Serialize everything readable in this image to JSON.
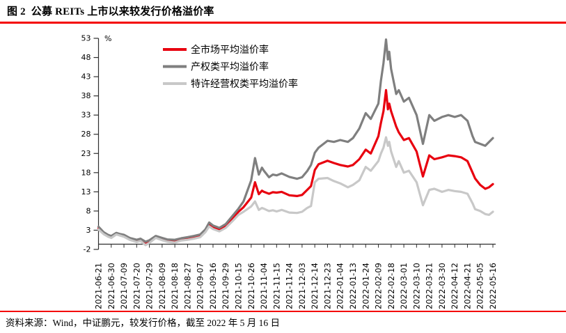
{
  "header": {
    "title": "图 2  公募 REITs 上市以来较发行价格溢价率"
  },
  "footer": {
    "source_note": "资料来源：Wind，中证鹏元，较发行价格，截至 2022 年 5 月 16 日"
  },
  "colors": {
    "rule_red": "#f40000",
    "series_red": "#e8000f",
    "series_dark_gray": "#7f7f7f",
    "series_light_gray": "#c8c8c8",
    "axis": "#2e2e2e",
    "text": "#000000"
  },
  "chart_data": {
    "type": "line",
    "unit_label": "%",
    "grid": false,
    "legend_position": "top-left-inside",
    "ylim": [
      -2,
      53
    ],
    "y_ticks": [
      53,
      48,
      43,
      38,
      33,
      28,
      23,
      18,
      13,
      8,
      3,
      -2
    ],
    "x_tick_labels": [
      "2021-06-21",
      "2021-06-30",
      "2021-07-09",
      "2021-07-20",
      "2021-07-29",
      "2021-08-09",
      "2021-08-18",
      "2021-08-27",
      "2021-09-07",
      "2021-09-16",
      "2021-09-29",
      "2021-10-15",
      "2021-10-26",
      "2021-11-04",
      "2021-11-15",
      "2021-11-24",
      "2021-12-03",
      "2021-12-14",
      "2021-12-23",
      "2022-01-04",
      "2022-01-13",
      "2022-01-24",
      "2022-02-09",
      "2022-02-18",
      "2022-03-01",
      "2022-03-10",
      "2022-03-21",
      "2022-03-30",
      "2022-04-12",
      "2022-04-21",
      "2022-05-05",
      "2022-05-16"
    ],
    "samples": {
      "x_index": [
        0,
        0.4,
        0.75,
        1,
        1.4,
        1.7,
        2,
        2.45,
        3,
        3.3,
        3.7,
        4,
        4.5,
        5,
        5.4,
        6,
        6.5,
        7,
        7.5,
        8,
        8.4,
        8.7,
        9,
        9.5,
        10,
        10.6,
        11,
        11.4,
        12,
        12.3,
        12.6,
        12.85,
        13,
        13.4,
        13.7,
        14,
        14.4,
        15,
        15.6,
        16,
        16.4,
        16.7,
        17,
        17.3,
        18,
        18.5,
        19,
        19.6,
        20,
        20.5,
        21,
        21.4,
        22,
        22.2,
        22.4,
        22.6,
        22.75,
        22.85,
        23,
        23.4,
        23.6,
        24,
        24.4,
        25,
        25.5,
        26,
        26.4,
        27,
        27.5,
        28,
        28.5,
        29,
        29.4,
        29.6,
        30,
        30.4,
        30.7,
        31
      ]
    },
    "series": [
      {
        "key": "market-average",
        "name": "全市场平均溢价率",
        "color": "#e8000f",
        "values": [
          3.5,
          2.2,
          1.5,
          1.2,
          2.1,
          1.8,
          1.5,
          0.7,
          0.2,
          0.5,
          -0.4,
          0.1,
          1.2,
          0.7,
          0.3,
          0.1,
          0.6,
          0.8,
          1.1,
          1.5,
          2.8,
          4.5,
          3.7,
          3.1,
          4.1,
          6.3,
          7.8,
          9.0,
          11.5,
          15.5,
          12.4,
          13.3,
          13.0,
          12.5,
          12.9,
          12.8,
          13.0,
          12.1,
          11.9,
          12.2,
          13.5,
          14.5,
          18.7,
          20.2,
          21.1,
          20.5,
          20.0,
          19.6,
          20.0,
          21.5,
          24.0,
          23.0,
          27.5,
          31.0,
          34.0,
          39.5,
          34.5,
          36.0,
          34.0,
          30.0,
          28.5,
          26.5,
          27.0,
          23.5,
          17.0,
          22.5,
          21.5,
          22.0,
          22.5,
          22.3,
          22.0,
          21.0,
          18.0,
          16.5,
          14.8,
          13.8,
          14.2,
          15.0
        ]
      },
      {
        "key": "property-rights",
        "name": "产权类平均溢价率",
        "color": "#7f7f7f",
        "values": [
          3.9,
          2.5,
          1.8,
          1.5,
          2.3,
          2.0,
          1.8,
          1.0,
          0.5,
          0.8,
          0.0,
          0.4,
          1.5,
          1.0,
          0.6,
          0.5,
          0.9,
          1.2,
          1.5,
          1.9,
          3.2,
          5.0,
          4.2,
          3.6,
          4.6,
          7.0,
          8.6,
          10.5,
          16.0,
          21.8,
          17.5,
          19.3,
          18.5,
          16.8,
          17.5,
          17.3,
          17.8,
          16.9,
          16.4,
          16.8,
          18.4,
          20.0,
          23.2,
          24.5,
          26.3,
          26.0,
          26.5,
          26.0,
          27.0,
          29.5,
          33.5,
          32.0,
          36.0,
          42.0,
          46.5,
          52.7,
          47.5,
          49.5,
          45.0,
          38.5,
          39.5,
          36.5,
          37.5,
          33.0,
          25.5,
          33.0,
          31.5,
          32.5,
          33.0,
          32.5,
          33.0,
          31.5,
          27.5,
          26.0,
          25.5,
          25.0,
          26.0,
          27.0
        ]
      },
      {
        "key": "franchise-rights",
        "name": "特许经营权类平均溢价率",
        "color": "#c8c8c8",
        "values": [
          3.2,
          2.0,
          1.3,
          1.0,
          1.9,
          1.6,
          1.3,
          0.5,
          -0.1,
          0.2,
          -0.9,
          -0.3,
          1.0,
          0.4,
          0.0,
          -0.2,
          0.3,
          0.5,
          0.8,
          1.2,
          2.5,
          4.0,
          3.3,
          2.7,
          3.6,
          5.6,
          7.0,
          7.8,
          9.2,
          10.5,
          8.3,
          8.8,
          8.6,
          8.0,
          8.2,
          7.9,
          8.3,
          7.6,
          7.5,
          7.8,
          8.8,
          9.3,
          15.5,
          16.4,
          16.6,
          15.8,
          15.2,
          14.2,
          14.8,
          16.0,
          19.5,
          18.5,
          21.0,
          23.0,
          24.5,
          27.2,
          25.0,
          26.0,
          23.5,
          19.5,
          21.0,
          18.0,
          18.5,
          15.5,
          9.5,
          13.5,
          13.8,
          13.0,
          13.5,
          13.2,
          13.0,
          12.5,
          10.0,
          8.5,
          8.0,
          7.2,
          7.0,
          7.8
        ]
      }
    ]
  }
}
